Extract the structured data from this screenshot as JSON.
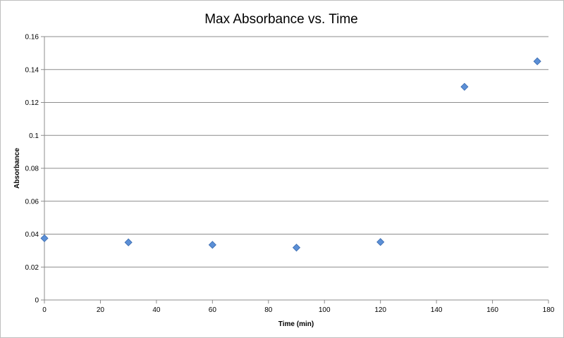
{
  "chart_data": {
    "type": "scatter",
    "title": "Max Absorbance vs. Time",
    "xlabel": "Time (min)",
    "ylabel": "Absorbance",
    "xlim": [
      0,
      180
    ],
    "ylim": [
      0,
      0.16
    ],
    "x_ticks": [
      "0",
      "20",
      "40",
      "60",
      "80",
      "100",
      "120",
      "140",
      "160",
      "180"
    ],
    "y_ticks": [
      "0",
      "0.02",
      "0.04",
      "0.06",
      "0.08",
      "0.1",
      "0.12",
      "0.14",
      "0.16"
    ],
    "grid": "horizontal",
    "legend": "none",
    "marker": "diamond",
    "marker_color": "#5b8fd6",
    "marker_edge_color": "#3a6bb0",
    "series": [
      {
        "x": [
          0,
          30,
          60,
          90,
          120,
          150,
          176
        ],
        "y": [
          0.0375,
          0.035,
          0.0335,
          0.0318,
          0.0352,
          0.1295,
          0.145
        ]
      }
    ]
  }
}
